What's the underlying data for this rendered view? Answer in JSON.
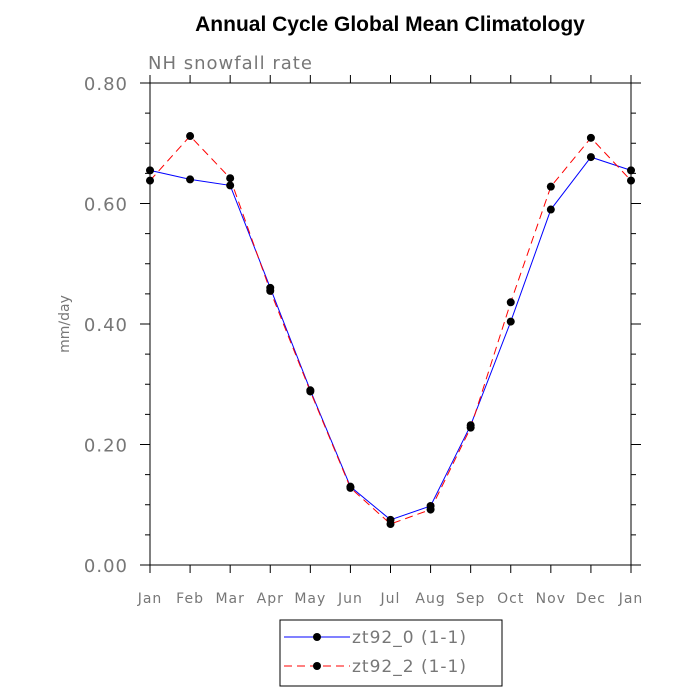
{
  "chart_data": {
    "type": "line",
    "title": "Annual Cycle Global Mean Climatology",
    "subtitle": "NH snowfall rate",
    "xlabel": "",
    "ylabel": "mm/day",
    "categories": [
      "Jan",
      "Feb",
      "Mar",
      "Apr",
      "May",
      "Jun",
      "Jul",
      "Aug",
      "Sep",
      "Oct",
      "Nov",
      "Dec",
      "Jan"
    ],
    "ylim": [
      0,
      0.8
    ],
    "yticks": [
      "0.00",
      "0.20",
      "0.40",
      "0.60",
      "0.80"
    ],
    "grid": false,
    "legend_position": "bottom-center",
    "series": [
      {
        "name": "zt92_0 (1-1)",
        "color": "#0000ff",
        "dash": "solid",
        "marker": "filled-circle",
        "values": [
          0.655,
          0.64,
          0.63,
          0.46,
          0.29,
          0.13,
          0.075,
          0.098,
          0.232,
          0.404,
          0.59,
          0.677,
          0.655
        ]
      },
      {
        "name": "zt92_2 (1-1)",
        "color": "#ff0000",
        "dash": "dashed",
        "marker": "filled-circle",
        "values": [
          0.638,
          0.712,
          0.642,
          0.455,
          0.288,
          0.128,
          0.068,
          0.092,
          0.228,
          0.436,
          0.628,
          0.709,
          0.638
        ]
      }
    ]
  }
}
